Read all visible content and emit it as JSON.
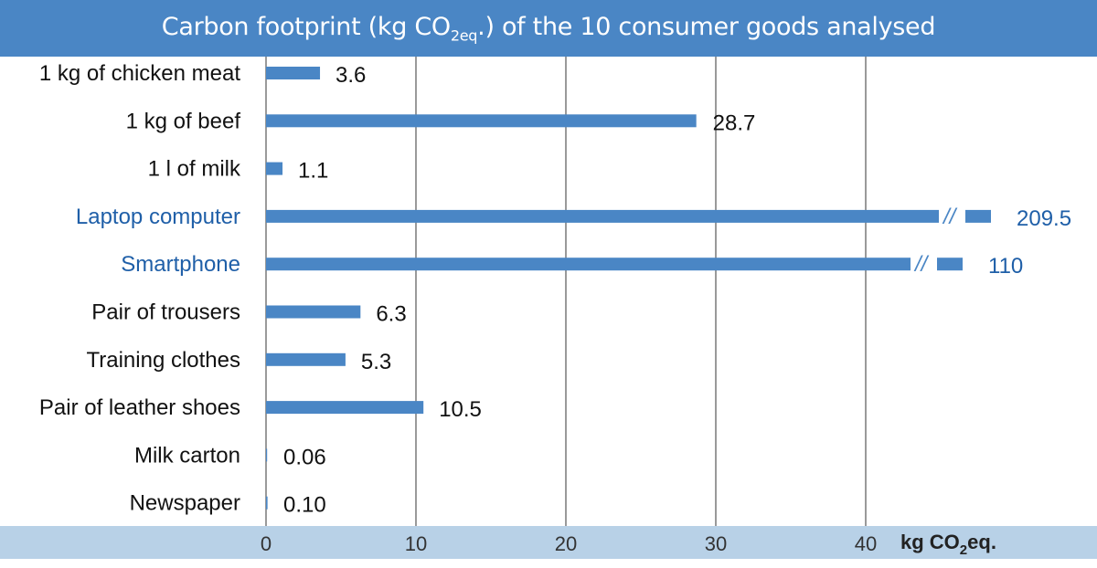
{
  "chart_data": {
    "type": "bar",
    "orientation": "horizontal",
    "title": "Carbon footprint (kg CO",
    "title_sub": "2eq",
    "title_end": ".) of the 10 consumer goods analysed",
    "xlabel_main": "kg CO",
    "xlabel_sub": "2",
    "xlabel_end": "eq.",
    "xlim": [
      0,
      50
    ],
    "xticks": [
      0,
      10,
      20,
      30,
      40
    ],
    "grid": true,
    "axis_break": "//",
    "categories": [
      "1 kg of chicken meat",
      "1 kg of beef",
      "1 l of milk",
      "Laptop computer",
      "Smartphone",
      "Pair of trousers",
      "Training clothes",
      "Pair of leather shoes",
      "Milk carton",
      "Newspaper"
    ],
    "values": [
      3.6,
      28.7,
      1.1,
      209.5,
      110,
      6.3,
      5.3,
      10.5,
      0.06,
      0.1
    ],
    "value_labels": [
      "3.6",
      "28.7",
      "1.1",
      "209.5",
      "110",
      "6.3",
      "5.3",
      "10.5",
      "0.06",
      "0.10"
    ],
    "broken": [
      false,
      false,
      false,
      true,
      true,
      false,
      false,
      false,
      false,
      false
    ],
    "highlight": [
      false,
      false,
      false,
      true,
      true,
      false,
      false,
      false,
      false,
      false
    ],
    "colors": {
      "bar": "#4a86c5",
      "title_bg": "#4a86c5",
      "axis_bg": "#b8d1e7",
      "grid": "#808080",
      "text": "#111111",
      "highlight_text": "#1f5fa8"
    }
  }
}
